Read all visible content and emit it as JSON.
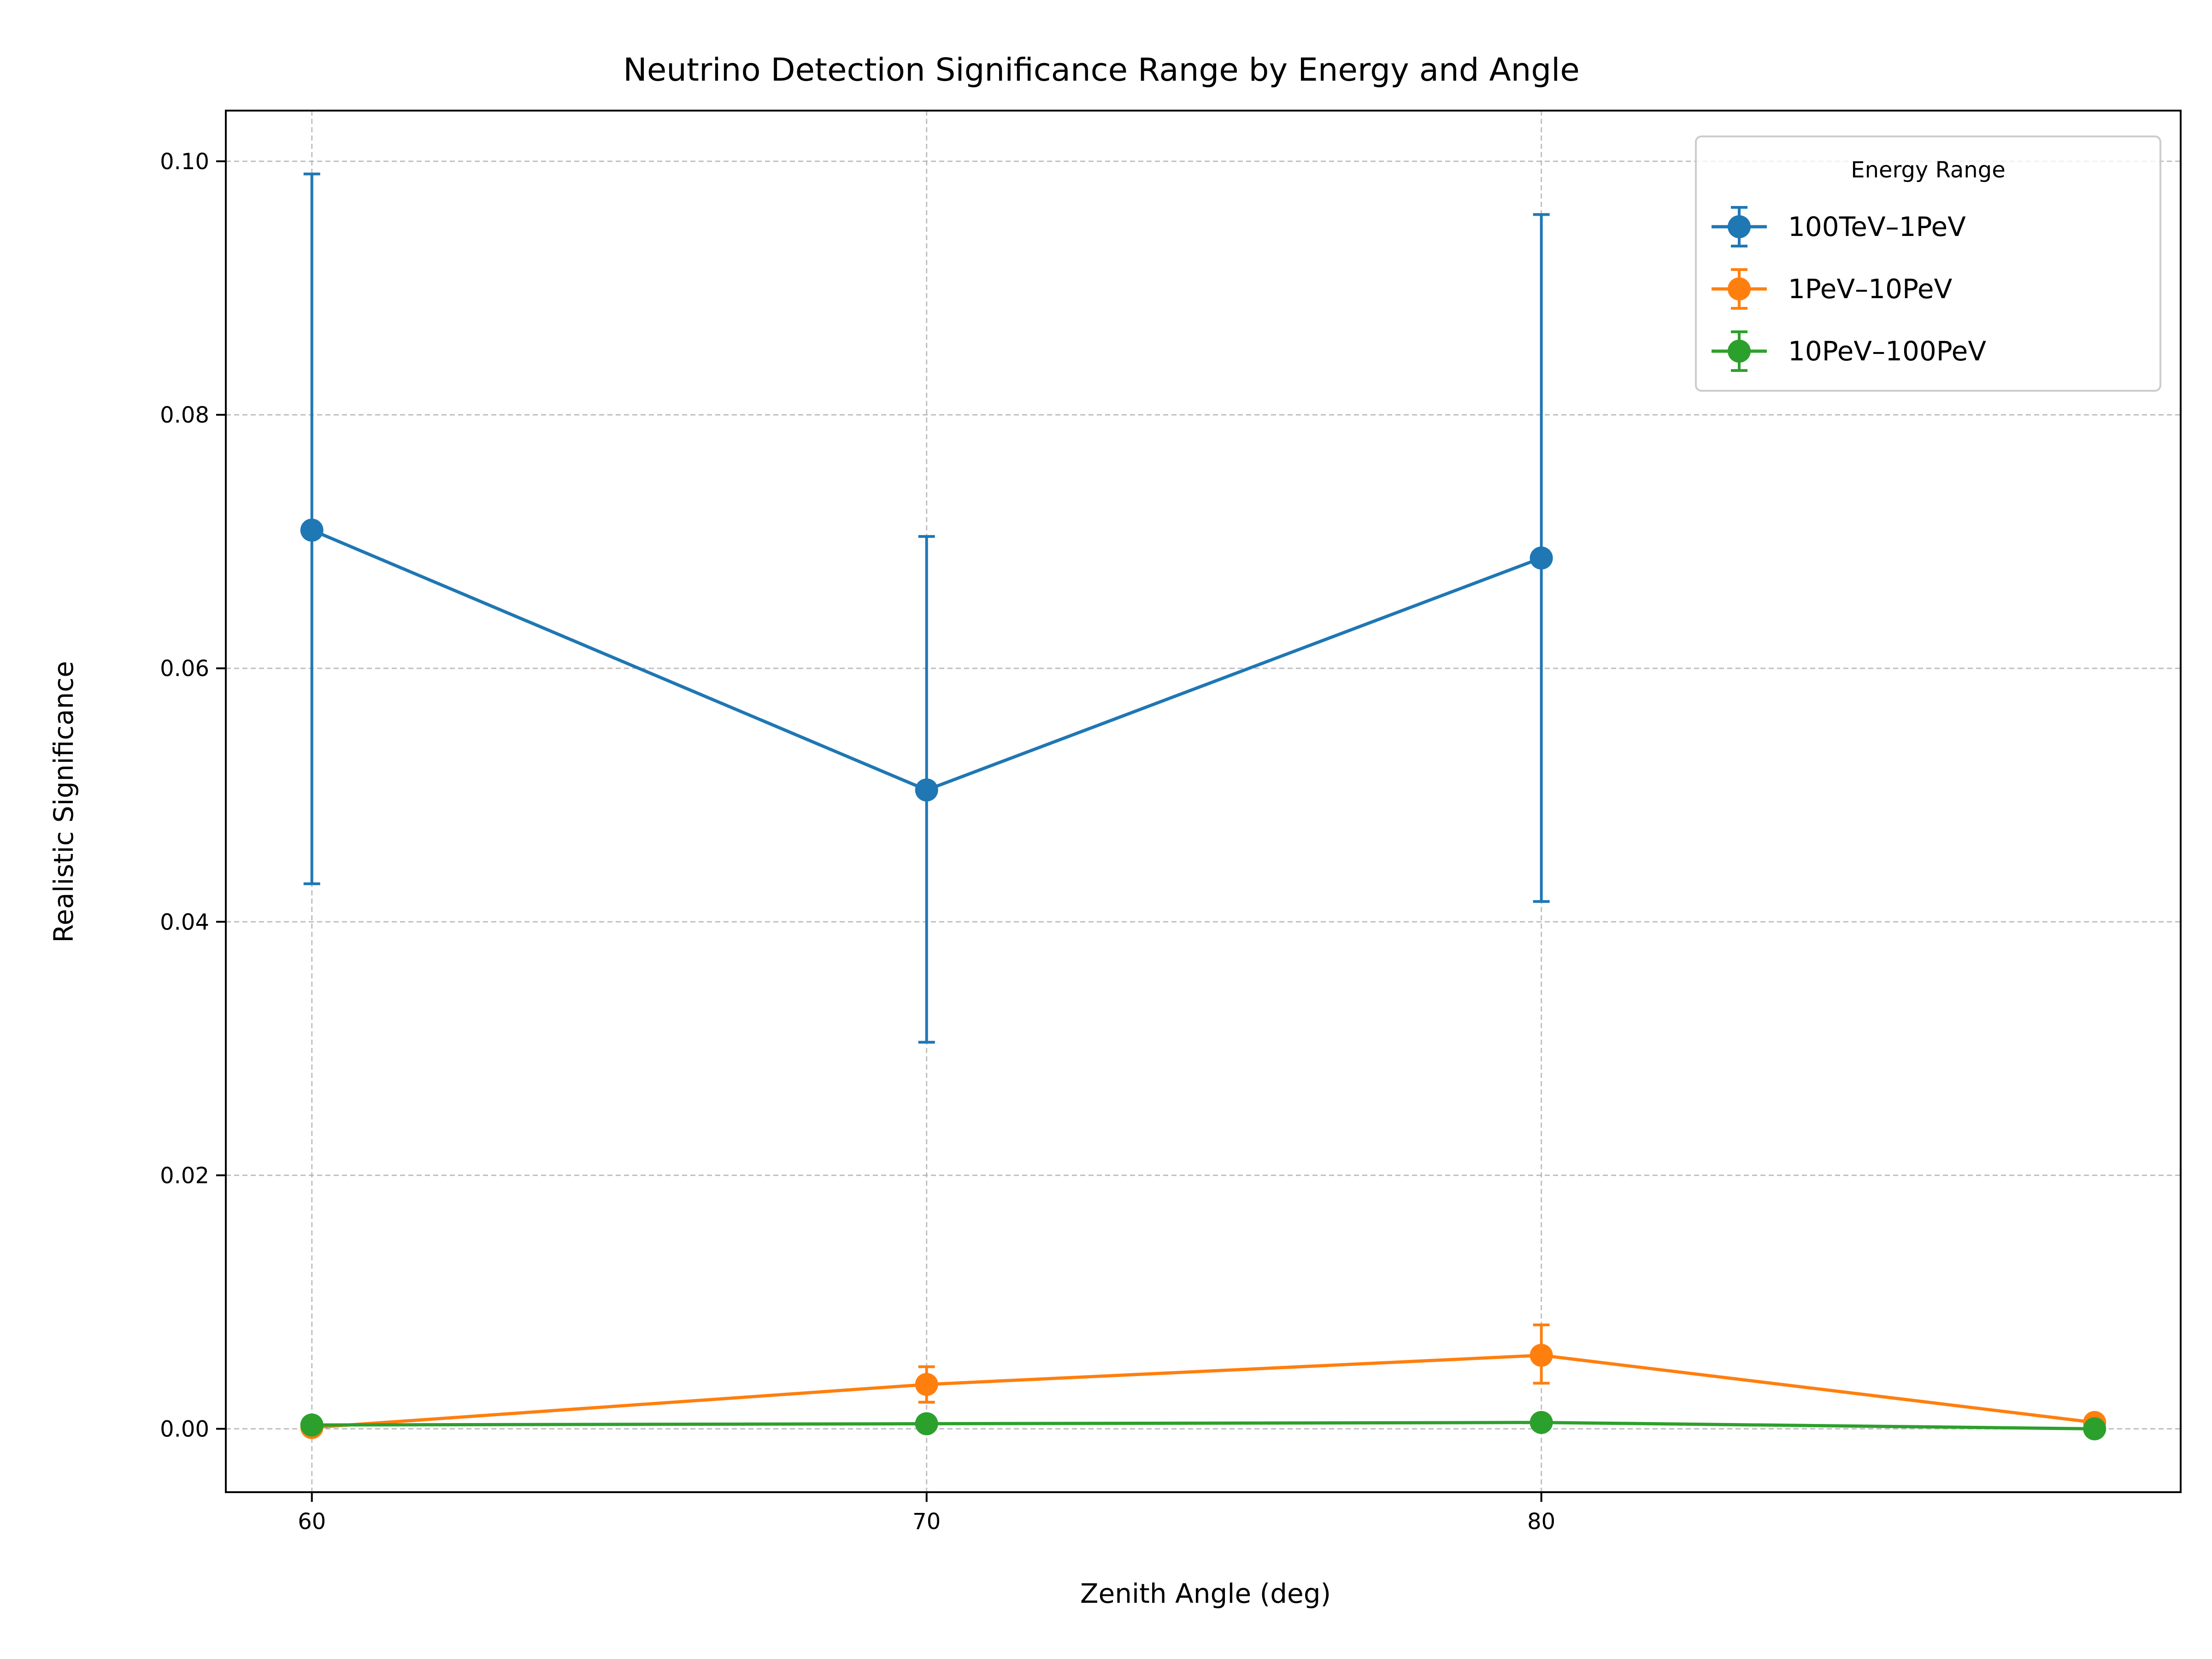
{
  "chart_data": {
    "type": "line",
    "title": "Neutrino Detection Significance Range by Energy and Angle",
    "xlabel": "Zenith Angle (deg)",
    "ylabel": "Realistic Significance",
    "xlim": [
      58.6,
      90.4
    ],
    "ylim": [
      -0.005,
      0.104
    ],
    "xticks": [
      60,
      70,
      80
    ],
    "xtick_labels": [
      "60",
      "70",
      "80"
    ],
    "yticks": [
      0.0,
      0.02,
      0.04,
      0.06,
      0.08,
      0.1
    ],
    "ytick_labels": [
      "0.00",
      "0.02",
      "0.04",
      "0.06",
      "0.08",
      "0.10"
    ],
    "grid": true,
    "legend": {
      "title": "Energy Range",
      "placement": "upper right",
      "entries": [
        "100TeV–1PeV",
        "1PeV–10PeV",
        "10PeV–100PeV"
      ]
    },
    "series": [
      {
        "name": "100TeV–1PeV",
        "color": "#1f77b4",
        "x": [
          60,
          70,
          80
        ],
        "y": [
          0.0709,
          0.0504,
          0.0687
        ],
        "yerr_low": [
          0.043,
          0.0305,
          0.0416
        ],
        "yerr_high": [
          0.099,
          0.0704,
          0.0958
        ]
      },
      {
        "name": "1PeV–10PeV",
        "color": "#ff7f0e",
        "x": [
          60,
          70,
          80,
          89
        ],
        "y": [
          0.0001,
          0.0035,
          0.0058,
          0.0005
        ],
        "yerr_low": [
          0.0001,
          0.0021,
          0.0036,
          0.0004
        ],
        "yerr_high": [
          0.0001,
          0.0049,
          0.0082,
          0.0006
        ]
      },
      {
        "name": "10PeV–100PeV",
        "color": "#2ca02c",
        "x": [
          60,
          70,
          80,
          89
        ],
        "y": [
          0.0003,
          0.0004,
          0.0005,
          0.0
        ],
        "yerr_low": [
          0.0003,
          0.0004,
          0.0005,
          0.0
        ],
        "yerr_high": [
          0.0003,
          0.0004,
          0.0005,
          0.0
        ]
      }
    ]
  }
}
